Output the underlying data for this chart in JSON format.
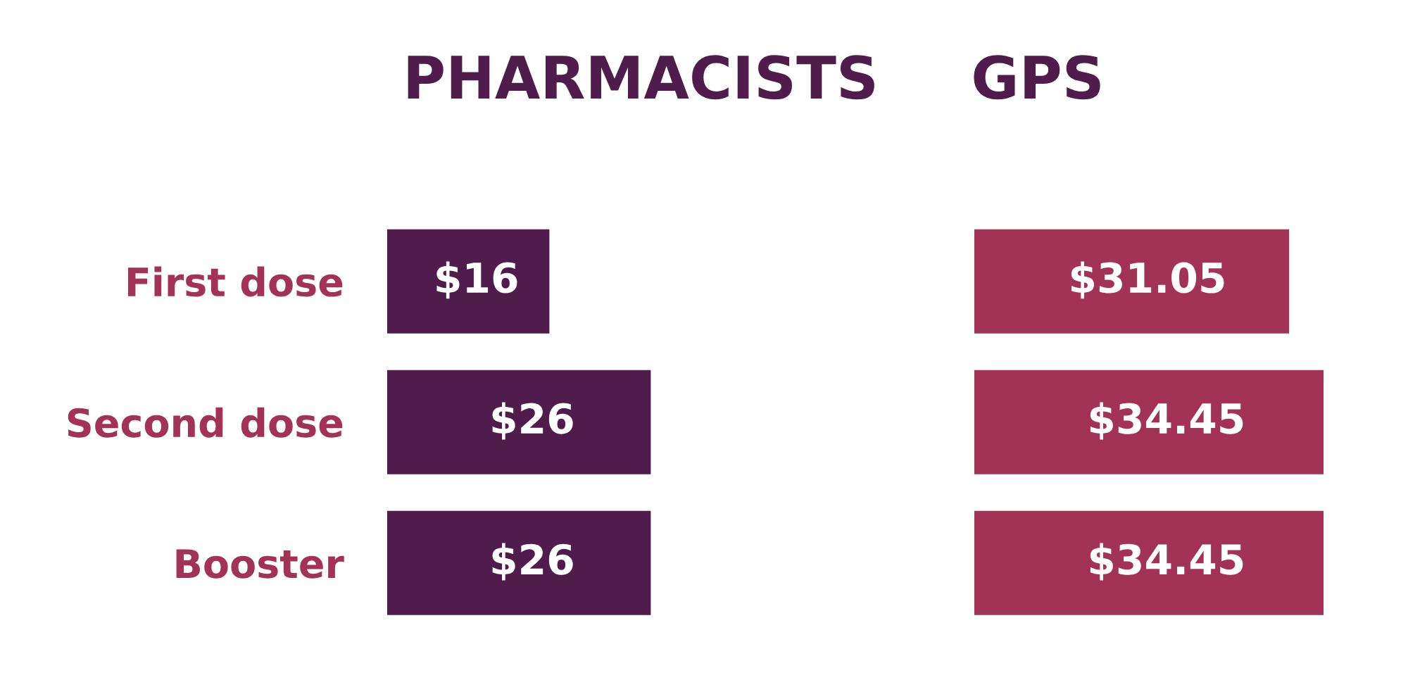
{
  "chart_data": [
    {
      "type": "bar",
      "orientation": "horizontal",
      "title": "PHARMACISTS",
      "categories": [
        "First dose",
        "Second dose",
        "Booster"
      ],
      "values": [
        16,
        26,
        26
      ],
      "color": "#4f1c4b",
      "value_labels": [
        "$16",
        "$26",
        "$26"
      ],
      "tick_labels": "y",
      "grid": false
    },
    {
      "type": "bar",
      "orientation": "horizontal",
      "title": "GPS",
      "categories": [
        null,
        null,
        null
      ],
      "values": [
        31.05,
        34.45,
        34.45
      ],
      "color": "#a33356",
      "value_labels": [
        "$31.05",
        "$34.45",
        "$34.45"
      ],
      "tick_labels": false,
      "grid": false
    }
  ]
}
